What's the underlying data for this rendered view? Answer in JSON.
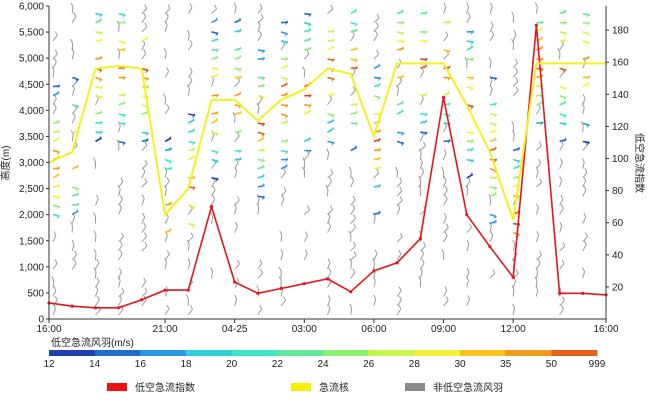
{
  "chart_data": {
    "type": "line",
    "ylabel_left": "高度(m)",
    "ylabel_right": "低空急流指数",
    "ylim_left": [
      0,
      6000
    ],
    "ylim_right": [
      0,
      195
    ],
    "yticks_left": [
      "0",
      "500",
      "1,000",
      "1,500",
      "2,000",
      "2,500",
      "3,000",
      "3,500",
      "4,000",
      "4,500",
      "5,000",
      "5,500",
      "6,000"
    ],
    "yticks_right": [
      "20",
      "40",
      "60",
      "80",
      "100",
      "120",
      "140",
      "160",
      "180"
    ],
    "x_ticks": [
      {
        "label": "16:00",
        "t": 0
      },
      {
        "label": "21:00",
        "t": 5
      },
      {
        "label": "04-25",
        "t": 8
      },
      {
        "label": "03:00",
        "t": 11
      },
      {
        "label": "06:00",
        "t": 14
      },
      {
        "label": "09:00",
        "t": 17
      },
      {
        "label": "12:00",
        "t": 20
      },
      {
        "label": "16:00",
        "t": 24
      }
    ],
    "xlim": [
      0,
      24
    ],
    "barb_scale_title": "低空急流风羽(m/s)",
    "barb_scale": [
      {
        "label": "12",
        "color": "#1f3fb0"
      },
      {
        "label": "14",
        "color": "#1e6cc8"
      },
      {
        "label": "16",
        "color": "#2a9be0"
      },
      {
        "label": "18",
        "color": "#2fcfd8"
      },
      {
        "label": "20",
        "color": "#3ee6c4"
      },
      {
        "label": "22",
        "color": "#5fe89a"
      },
      {
        "label": "24",
        "color": "#8ff070"
      },
      {
        "label": "26",
        "color": "#c8f54a"
      },
      {
        "label": "28",
        "color": "#f2f23a"
      },
      {
        "label": "30",
        "color": "#f7c21f"
      },
      {
        "label": "35",
        "color": "#f29a1a"
      },
      {
        "label": "50",
        "color": "#e8601a"
      },
      {
        "label": "999",
        "color": "#d8401a"
      }
    ],
    "series": [
      {
        "name": "低空急流指数",
        "color": "#e8141c",
        "axis": "right",
        "points": [
          [
            0,
            10
          ],
          [
            1,
            8
          ],
          [
            2,
            7
          ],
          [
            3,
            7
          ],
          [
            4,
            12
          ],
          [
            5,
            18
          ],
          [
            6,
            18
          ],
          [
            7,
            70
          ],
          [
            8,
            23
          ],
          [
            9,
            16
          ],
          [
            10,
            19
          ],
          [
            11,
            22
          ],
          [
            12,
            25
          ],
          [
            13,
            17
          ],
          [
            14,
            30
          ],
          [
            15,
            35
          ],
          [
            16,
            50
          ],
          [
            17,
            138
          ],
          [
            18,
            65
          ],
          [
            19,
            45
          ],
          [
            20,
            26
          ],
          [
            21,
            183
          ],
          [
            22,
            16
          ],
          [
            23,
            16
          ],
          [
            24,
            15
          ]
        ]
      },
      {
        "name": "急流核",
        "color": "#f5f020",
        "axis": "left",
        "points": [
          [
            0,
            3000
          ],
          [
            1,
            3200
          ],
          [
            2,
            4800
          ],
          [
            3,
            4850
          ],
          [
            4,
            4800
          ],
          [
            5,
            2000
          ],
          [
            6,
            2500
          ],
          [
            7,
            4200
          ],
          [
            8,
            4200
          ],
          [
            9,
            3800
          ],
          [
            10,
            4200
          ],
          [
            11,
            4400
          ],
          [
            12,
            4800
          ],
          [
            13,
            4700
          ],
          [
            14,
            3500
          ],
          [
            15,
            4900
          ],
          [
            16,
            4900
          ],
          [
            17,
            4900
          ],
          [
            18,
            4100
          ],
          [
            19,
            3200
          ],
          [
            20,
            1900
          ],
          [
            21,
            4900
          ],
          [
            22,
            4900
          ],
          [
            23,
            4900
          ],
          [
            24,
            4900
          ]
        ]
      }
    ],
    "legend": [
      {
        "label": "低空急流指数",
        "color": "#ee1111"
      },
      {
        "label": "急流核",
        "color": "#f5f000"
      },
      {
        "label": "非低空急流风羽",
        "color": "#8a8a8a"
      }
    ],
    "grid": false
  }
}
